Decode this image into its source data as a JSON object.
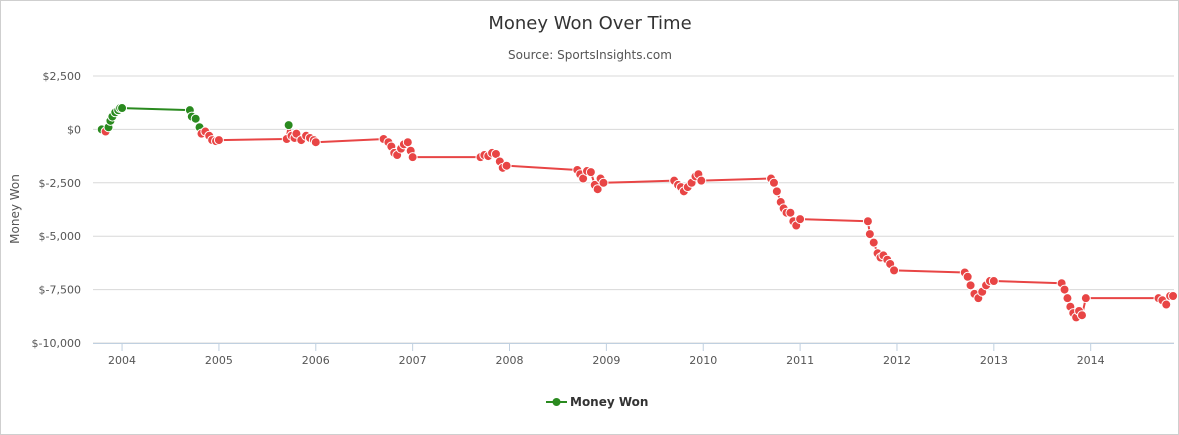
{
  "chart_data": {
    "type": "line",
    "title": "Money Won Over Time",
    "subtitle": "Source: SportsInsights.com",
    "ylabel": "Money Won",
    "xlabel": "",
    "xlim": [
      2003.7,
      2014.86
    ],
    "ylim": [
      -10000,
      2500
    ],
    "y_ticks": [
      2500,
      0,
      -2500,
      -5000,
      -7500,
      -10000
    ],
    "y_tick_labels": [
      "$2,500",
      "$0",
      "$-2,500",
      "$-5,000",
      "$-7,500",
      "$-10,000"
    ],
    "x_ticks": [
      2004,
      2005,
      2006,
      2007,
      2008,
      2009,
      2010,
      2011,
      2012,
      2013,
      2014
    ],
    "x_tick_labels": [
      "2004",
      "2005",
      "2006",
      "2007",
      "2008",
      "2009",
      "2010",
      "2011",
      "2012",
      "2013",
      "2014"
    ],
    "grid": true,
    "legend_position": "bottom-center",
    "positive_color": "#2a8a1f",
    "negative_color": "#e84545",
    "series": [
      {
        "name": "Money Won",
        "x": [
          2003.79,
          2003.83,
          2003.86,
          2003.88,
          2003.9,
          2003.93,
          2003.96,
          2003.98,
          2004.0,
          2004.7,
          2004.72,
          2004.76,
          2004.8,
          2004.82,
          2004.86,
          2004.9,
          2004.93,
          2004.97,
          2005.0,
          2005.7,
          2005.72,
          2005.75,
          2005.78,
          2005.8,
          2005.85,
          2005.9,
          2005.94,
          2005.98,
          2006.0,
          2006.7,
          2006.75,
          2006.78,
          2006.81,
          2006.84,
          2006.88,
          2006.91,
          2006.95,
          2006.98,
          2007.0,
          2007.7,
          2007.74,
          2007.78,
          2007.82,
          2007.86,
          2007.9,
          2007.93,
          2007.97,
          2008.7,
          2008.73,
          2008.76,
          2008.8,
          2008.84,
          2008.88,
          2008.91,
          2008.94,
          2008.97,
          2009.7,
          2009.74,
          2009.77,
          2009.8,
          2009.84,
          2009.88,
          2009.92,
          2009.95,
          2009.98,
          2010.7,
          2010.73,
          2010.76,
          2010.8,
          2010.83,
          2010.86,
          2010.9,
          2010.93,
          2010.96,
          2011.0,
          2011.7,
          2011.72,
          2011.76,
          2011.8,
          2011.83,
          2011.86,
          2011.9,
          2011.93,
          2011.97,
          2012.7,
          2012.73,
          2012.76,
          2012.8,
          2012.84,
          2012.88,
          2012.92,
          2012.96,
          2013.0,
          2013.7,
          2013.73,
          2013.76,
          2013.79,
          2013.82,
          2013.85,
          2013.88,
          2013.91,
          2013.95,
          2014.7,
          2014.74,
          2014.78,
          2014.82,
          2014.85
        ],
        "values": [
          0,
          -100,
          100,
          400,
          600,
          800,
          900,
          1000,
          1000,
          900,
          600,
          500,
          100,
          -200,
          -100,
          -300,
          -500,
          -550,
          -500,
          -450,
          200,
          -300,
          -400,
          -200,
          -500,
          -300,
          -400,
          -500,
          -600,
          -450,
          -600,
          -800,
          -1100,
          -1200,
          -900,
          -700,
          -600,
          -1000,
          -1300,
          -1300,
          -1200,
          -1250,
          -1100,
          -1150,
          -1500,
          -1800,
          -1700,
          -1900,
          -2100,
          -2300,
          -1950,
          -2000,
          -2600,
          -2800,
          -2300,
          -2500,
          -2400,
          -2600,
          -2700,
          -2900,
          -2700,
          -2500,
          -2200,
          -2100,
          -2400,
          -2300,
          -2500,
          -2900,
          -3400,
          -3700,
          -3900,
          -3900,
          -4300,
          -4500,
          -4200,
          -4300,
          -4900,
          -5300,
          -5800,
          -6000,
          -5900,
          -6100,
          -6300,
          -6600,
          -6700,
          -6900,
          -7300,
          -7700,
          -7900,
          -7600,
          -7300,
          -7100,
          -7100,
          -7200,
          -7500,
          -7900,
          -8300,
          -8600,
          -8800,
          -8500,
          -8700,
          -7900,
          -7900,
          -8000,
          -8200,
          -7800,
          -7800
        ]
      }
    ]
  }
}
